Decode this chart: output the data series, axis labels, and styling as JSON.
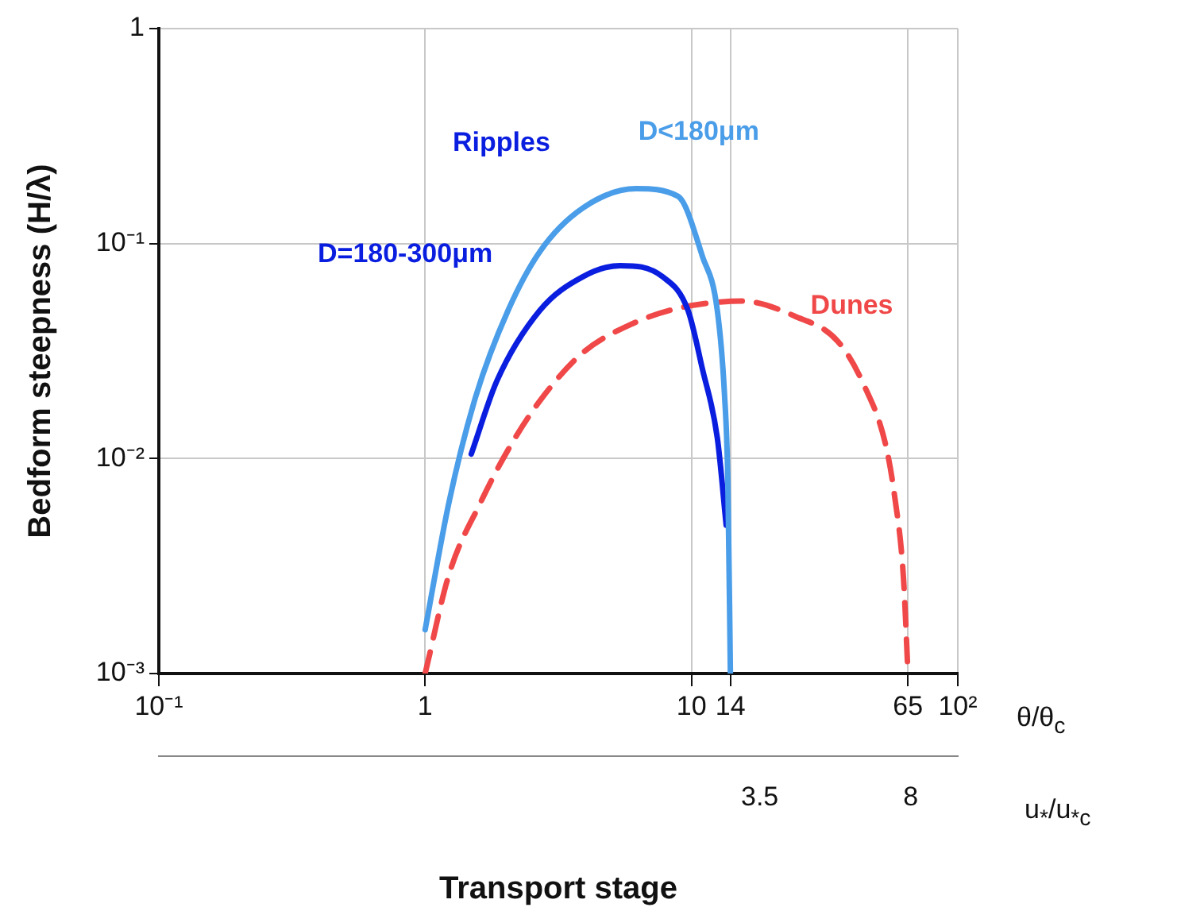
{
  "chart_data": {
    "type": "line",
    "xlabel": "Transport stage",
    "ylabel": "Bedform steepness (H/λ)",
    "log": "xy",
    "grid": true,
    "legend": false,
    "marker": "none",
    "xlim": [
      0.1,
      100
    ],
    "xticks": [
      {
        "value": 0.1,
        "label": "10⁻¹"
      },
      1,
      10,
      14,
      65,
      {
        "value": 100,
        "label": "10²"
      }
    ],
    "x2lim": [
      -14.4,
      9.4
    ],
    "x2ticks": [
      3.5,
      8
    ],
    "ylim": [
      0.001,
      1
    ],
    "yticks": [
      1,
      {
        "value": 0.1,
        "label": "10⁻¹"
      },
      {
        "value": 0.01,
        "label": "10⁻²"
      },
      {
        "value": 0.001,
        "label": "10⁻³"
      }
    ],
    "annotations": [
      "Ripples",
      "θ/θ$_{c}$",
      "u$_{*}$/u$_{*c}$"
    ],
    "series": [
      {
        "name": "D<180μm",
        "color": "#4a9de8",
        "line_style": "solid",
        "x": [
          1,
          1.23,
          1.55,
          2.05,
          2.7,
          3.9,
          6.2,
          8.9,
          11,
          12.5,
          13.3,
          13.7,
          14
        ],
        "values": [
          0.0016,
          0.0063,
          0.0195,
          0.049,
          0.092,
          0.146,
          0.18,
          0.166,
          0.087,
          0.049,
          0.02,
          0.0077,
          0.001
        ]
      },
      {
        "name": "D=180-300μm",
        "color": "#0a1ee0",
        "line_style": "solid",
        "x": [
          1.49,
          1.86,
          2.7,
          3.9,
          5.4,
          7.8,
          9.7,
          11,
          12.5,
          13.5
        ],
        "values": [
          0.0105,
          0.023,
          0.049,
          0.07,
          0.079,
          0.07,
          0.049,
          0.026,
          0.0125,
          0.0049
        ]
      },
      {
        "name": "Dunes",
        "color": "#f04848",
        "line_style": "dashed",
        "x": [
          1,
          1.23,
          1.62,
          2.05,
          2.7,
          3.9,
          5.9,
          8.9,
          15.5,
          24.4,
          35.5,
          44.4,
          53.5,
          58,
          62.5,
          65
        ],
        "values": [
          0.001,
          0.0029,
          0.0063,
          0.011,
          0.0186,
          0.031,
          0.042,
          0.05,
          0.054,
          0.046,
          0.035,
          0.022,
          0.0117,
          0.0066,
          0.0028,
          0.001
        ]
      }
    ]
  }
}
